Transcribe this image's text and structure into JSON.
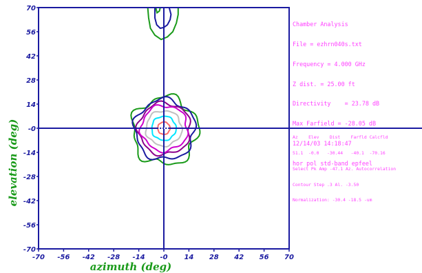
{
  "info_panel": {
    "lines": [
      "Chamber Analysis",
      "File = ezhrn040s.txt",
      "Frequency = 4.000 GHz",
      "Z dist. = 25.00 ft",
      "Directivity    = 23.78 dB",
      "Max Farfield = -28.05 dB",
      "12/14/03 14:18:47",
      "hor pol std-band epfeel"
    ],
    "detail_lines": [
      "Az    Elev    Dist    Farfld Calcfld",
      "51.1  -0.0   -30.44   -40.1  -70.16",
      "Select Pk Amp -47.1 Az. Autocorrelation",
      "Contour Step .3 Al. -3.50",
      "Normalization: -30.4 -18.5 -um"
    ]
  },
  "chart_data": {
    "type": "contour",
    "xlabel": "azimuth (deg)",
    "ylabel": "elevation (deg)",
    "xlim": [
      -70,
      70
    ],
    "ylim": [
      -70,
      70
    ],
    "xticks": [
      "-70",
      "-56",
      "-42",
      "-28",
      "-14",
      "-0",
      "14",
      "28",
      "42",
      "56",
      "70"
    ],
    "yticks": [
      "70",
      "56",
      "42",
      "28",
      "14",
      "-0",
      "-14",
      "-28",
      "-42",
      "-56",
      "-70"
    ],
    "tick_values": [
      -70,
      -56,
      -42,
      -28,
      -14,
      0,
      14,
      28,
      42,
      56,
      70
    ],
    "crosshair": [
      0,
      0
    ],
    "contours": [
      {
        "level": 1,
        "color": "#ff6a6a",
        "center": [
          0,
          0
        ],
        "rx": 3.4,
        "ry": 3.6,
        "wobble": 0.03
      },
      {
        "level": 2,
        "color": "#00e5ff",
        "center": [
          0,
          0
        ],
        "rx": 6.8,
        "ry": 7.0,
        "wobble": 0.04
      },
      {
        "level": 3,
        "color": "#c0c0c0",
        "center": [
          0,
          0
        ],
        "rx": 10.0,
        "ry": 10.2,
        "wobble": 0.05
      },
      {
        "level": 4,
        "color": "#cc00cc",
        "center": [
          0.3,
          0
        ],
        "rx": 13.0,
        "ry": 13.2,
        "wobble": 0.06
      },
      {
        "level": 5,
        "color": "#8b008b",
        "center": [
          0.3,
          -0.3
        ],
        "rx": 14.6,
        "ry": 15.0,
        "wobble": 0.06
      },
      {
        "level": 6,
        "color": "#1a1aa0",
        "center": [
          0.5,
          -0.8
        ],
        "rx": 16.8,
        "ry": 17.5,
        "wobble": 0.07
      },
      {
        "level": 7,
        "color": "#1a9a1a",
        "center": [
          0.6,
          -1.5
        ],
        "rx": 18.2,
        "ry": 19.6,
        "wobble": 0.1
      }
    ],
    "sidelobe_contours": [
      {
        "color": "#1a1aa0",
        "points": [
          [
            -5,
            70
          ],
          [
            -5,
            64
          ],
          [
            -4,
            60
          ],
          [
            -2,
            58
          ],
          [
            0,
            58.5
          ],
          [
            2,
            60
          ],
          [
            3.5,
            63
          ],
          [
            4,
            66
          ],
          [
            3,
            70
          ]
        ]
      },
      {
        "color": "#1a9a1a",
        "points": [
          [
            -9,
            70
          ],
          [
            -8.5,
            64
          ],
          [
            -7.5,
            58
          ],
          [
            -5,
            54
          ],
          [
            -1.5,
            51.5
          ],
          [
            2,
            53
          ],
          [
            5,
            56
          ],
          [
            7,
            61
          ],
          [
            8,
            66
          ],
          [
            8,
            70
          ]
        ]
      },
      {
        "color": "#1a9a1a",
        "points": [
          [
            -4.5,
            70
          ],
          [
            -3.8,
            67
          ],
          [
            -2.5,
            68
          ],
          [
            -2,
            70
          ]
        ]
      }
    ],
    "grid": false,
    "legend": "none"
  }
}
